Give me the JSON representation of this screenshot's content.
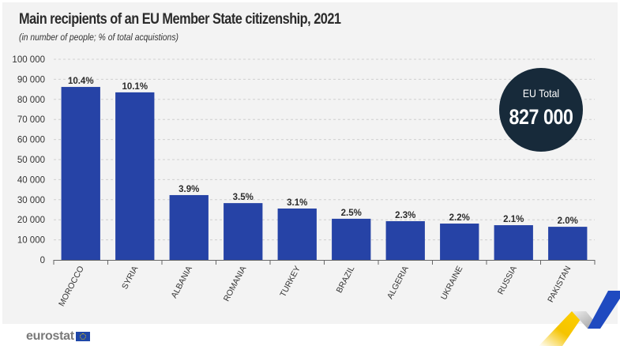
{
  "header": {
    "title": "Main recipients of an EU Member State citizenship, 2021",
    "subtitle": "(in number of people; % of total acquistions)"
  },
  "badge": {
    "label": "EU Total",
    "value": "827 000"
  },
  "footer": {
    "logo_text": "eurostat",
    "logo_icon": "eu-flag-icon"
  },
  "colors": {
    "bar": "#2643a6",
    "badge": "#172a3a",
    "panel": "#f3f3f3"
  },
  "chart_data": {
    "type": "bar",
    "title": "Main recipients of an EU Member State citizenship, 2021",
    "subtitle": "(in number of people; % of total acquistions)",
    "xlabel": "",
    "ylabel": "",
    "categories": [
      "MOROCCO",
      "SYRIA",
      "ALBANIA",
      "ROMANIA",
      "TURKEY",
      "BRAZIL",
      "ALGERIA",
      "UKRAINE",
      "RUSSIA",
      "PAKISTAN"
    ],
    "values": [
      86200,
      83500,
      32300,
      28300,
      25600,
      20500,
      19300,
      18100,
      17300,
      16500
    ],
    "data_labels": [
      "10.4%",
      "10.1%",
      "3.9%",
      "3.5%",
      "3.1%",
      "2.5%",
      "2.3%",
      "2.2%",
      "2.1%",
      "2.0%"
    ],
    "ylim": [
      0,
      100000
    ],
    "yticks": [
      0,
      10000,
      20000,
      30000,
      40000,
      50000,
      60000,
      70000,
      80000,
      90000,
      100000
    ],
    "ytick_labels": [
      "0",
      "10 000",
      "20 000",
      "30 000",
      "40 000",
      "50 000",
      "60 000",
      "70 000",
      "80 000",
      "90 000",
      "100 000"
    ],
    "grid": "horizontal-dashed",
    "legend": "none",
    "annotation": {
      "label": "EU Total",
      "value": "827 000"
    }
  }
}
